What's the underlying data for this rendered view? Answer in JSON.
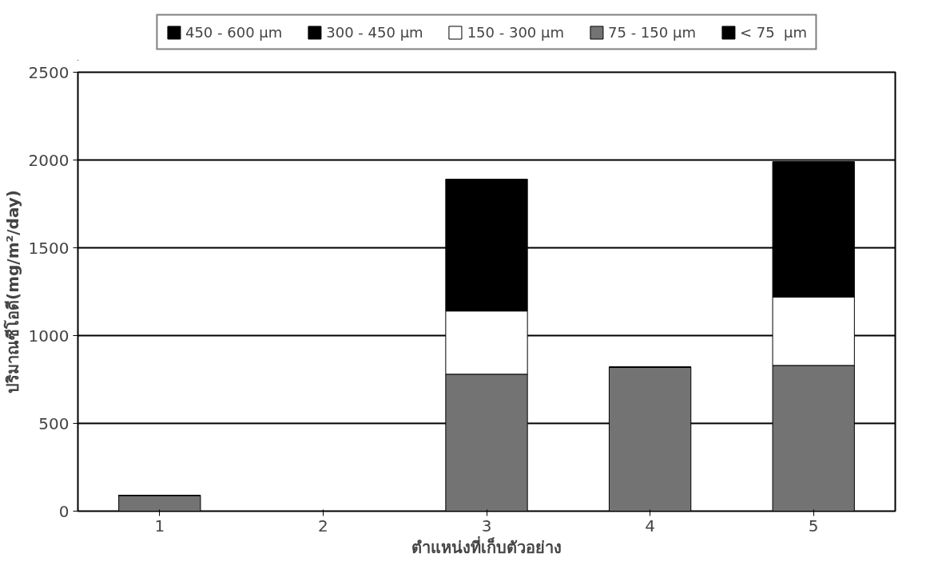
{
  "chart_data": {
    "type": "bar",
    "stacked": true,
    "xlabel": "ตำแหน่งที่เก็บตัวอย่าง",
    "ylabel": "ปริมาณซีโอดี(mg/m²/day)",
    "categories": [
      "1",
      "2",
      "3",
      "4",
      "5"
    ],
    "series": [
      {
        "name": "< 75  µm",
        "color": "#000000",
        "values": [
          0,
          0,
          0,
          0,
          0
        ]
      },
      {
        "name": "75 - 150 µm",
        "color": "#737373",
        "values": [
          90,
          0,
          780,
          820,
          830
        ]
      },
      {
        "name": "150 - 300 µm",
        "color": "#ffffff",
        "values": [
          0,
          0,
          360,
          0,
          390
        ]
      },
      {
        "name": "300 - 450 µm",
        "color": "#000000",
        "values": [
          0,
          0,
          750,
          0,
          770
        ]
      },
      {
        "name": "450 - 600 µm",
        "color": "#000000",
        "values": [
          0,
          0,
          0,
          0,
          0
        ]
      }
    ],
    "ylim": [
      0,
      2500
    ],
    "yticks": [
      0,
      500,
      1000,
      1500,
      2000,
      2500
    ],
    "grid": "y",
    "legend": "top"
  }
}
